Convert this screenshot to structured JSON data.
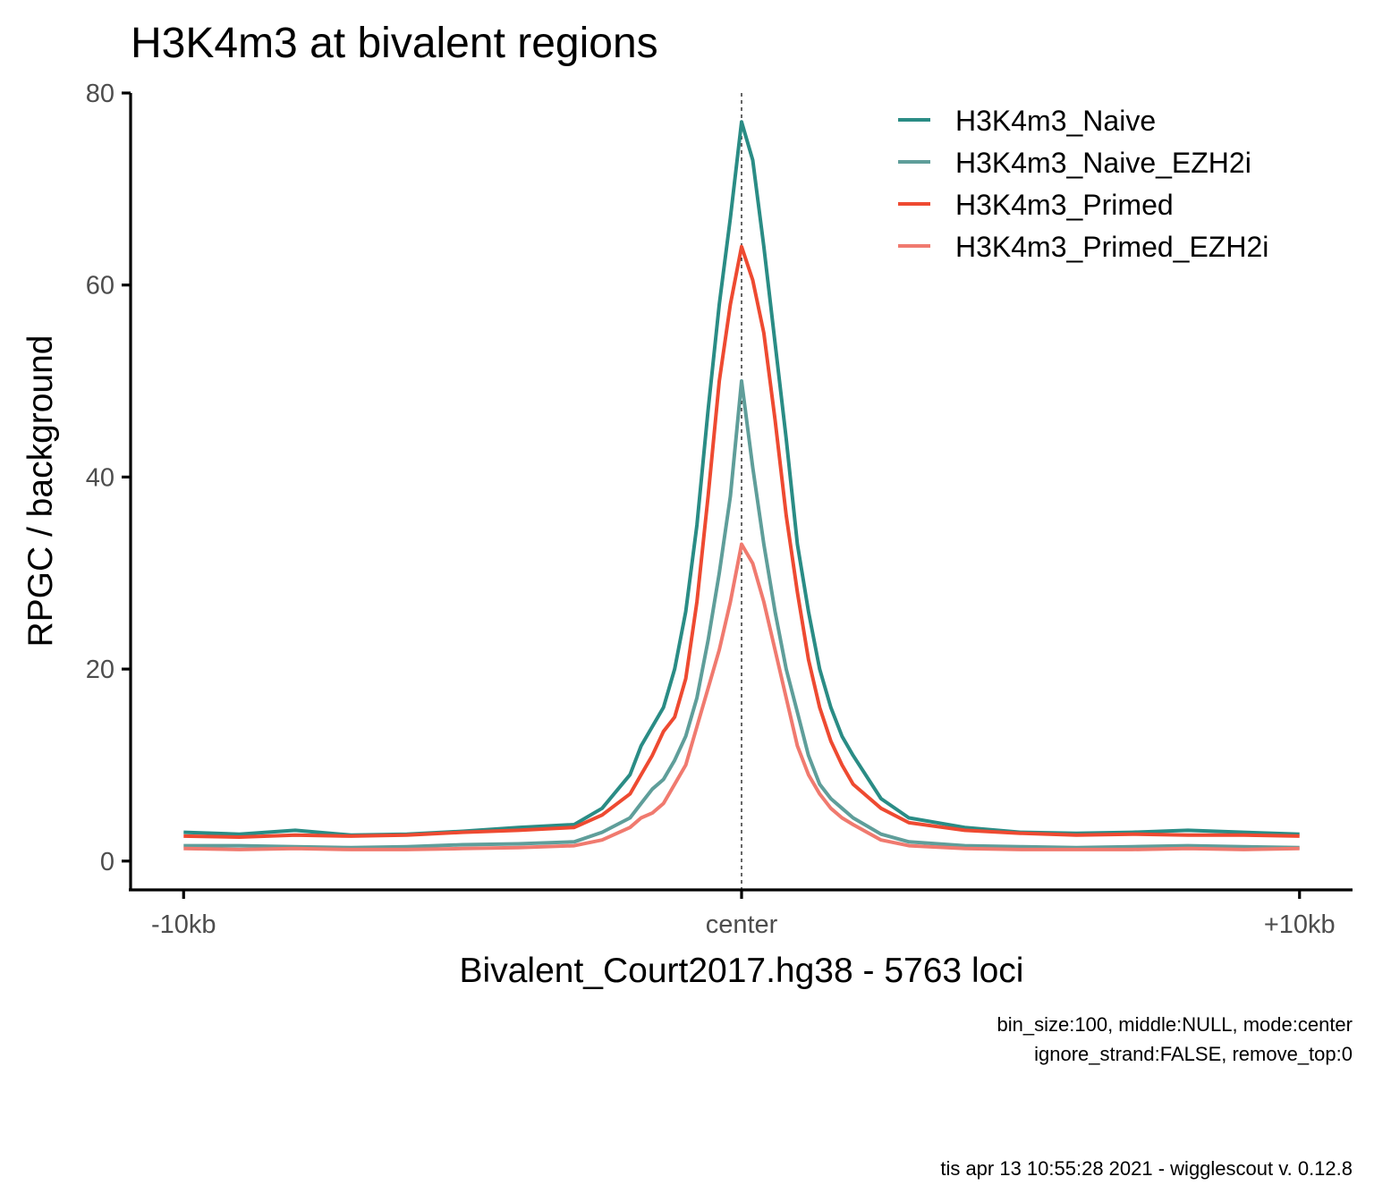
{
  "chart_data": {
    "type": "line",
    "title": "H3K4m3 at bivalent regions",
    "xlabel": "Bivalent_Court2017.hg38 - 5763 loci",
    "ylabel": "RPGC / background",
    "x_tick_labels": [
      "-10kb",
      "center",
      "+10kb"
    ],
    "x_ticks": [
      -10000,
      0,
      10000
    ],
    "y_ticks": [
      0,
      20,
      40,
      60,
      80
    ],
    "ylim": [
      -3,
      80
    ],
    "xlim": [
      -10950,
      10950
    ],
    "center_line": true,
    "grid": false,
    "legend_position": "top-right",
    "x": [
      -10000,
      -9000,
      -8000,
      -7000,
      -6000,
      -5000,
      -4000,
      -3000,
      -2500,
      -2000,
      -1800,
      -1600,
      -1400,
      -1200,
      -1000,
      -800,
      -600,
      -400,
      -200,
      0,
      200,
      400,
      600,
      800,
      1000,
      1200,
      1400,
      1600,
      1800,
      2000,
      2500,
      3000,
      4000,
      5000,
      6000,
      7000,
      8000,
      9000,
      10000
    ],
    "series": [
      {
        "name": "H3K4m3_Naive",
        "color": "#2a8c85",
        "values": [
          3.0,
          2.8,
          3.2,
          2.7,
          2.8,
          3.1,
          3.5,
          3.8,
          5.5,
          9.0,
          12.0,
          14.0,
          16.0,
          20.0,
          26.0,
          35.0,
          47.0,
          58.0,
          67.0,
          77.0,
          73.0,
          64.0,
          54.0,
          44.0,
          33.0,
          26.0,
          20.0,
          16.0,
          13.0,
          11.0,
          6.5,
          4.5,
          3.5,
          3.0,
          2.9,
          3.0,
          3.2,
          3.0,
          2.8
        ]
      },
      {
        "name": "H3K4m3_Naive_EZH2i",
        "color": "#5f9e9a",
        "values": [
          1.6,
          1.6,
          1.5,
          1.4,
          1.5,
          1.7,
          1.8,
          2.0,
          3.0,
          4.5,
          6.0,
          7.5,
          8.5,
          10.5,
          13.0,
          17.0,
          23.0,
          30.0,
          38.0,
          50.0,
          41.0,
          33.0,
          26.0,
          20.0,
          15.5,
          11.0,
          8.0,
          6.5,
          5.5,
          4.5,
          2.8,
          2.0,
          1.6,
          1.5,
          1.4,
          1.5,
          1.6,
          1.5,
          1.4
        ]
      },
      {
        "name": "H3K4m3_Primed",
        "color": "#ee4a31",
        "values": [
          2.6,
          2.5,
          2.7,
          2.6,
          2.7,
          3.0,
          3.2,
          3.5,
          4.8,
          7.0,
          9.0,
          11.0,
          13.5,
          15.0,
          19.0,
          27.0,
          38.0,
          50.0,
          58.0,
          64.0,
          60.5,
          55.0,
          46.0,
          36.0,
          28.0,
          21.0,
          16.0,
          12.5,
          10.0,
          8.0,
          5.5,
          4.0,
          3.2,
          2.9,
          2.7,
          2.8,
          2.7,
          2.7,
          2.6
        ]
      },
      {
        "name": "H3K4m3_Primed_EZH2i",
        "color": "#f07a6f",
        "values": [
          1.3,
          1.2,
          1.3,
          1.2,
          1.2,
          1.3,
          1.4,
          1.6,
          2.2,
          3.5,
          4.5,
          5.0,
          6.0,
          8.0,
          10.0,
          14.0,
          18.0,
          22.0,
          27.0,
          33.0,
          31.0,
          27.0,
          22.0,
          17.0,
          12.0,
          9.0,
          7.0,
          5.5,
          4.5,
          3.8,
          2.2,
          1.6,
          1.3,
          1.2,
          1.2,
          1.2,
          1.3,
          1.2,
          1.3
        ]
      }
    ],
    "caption_lines": [
      "bin_size:100, middle:NULL, mode:center",
      "ignore_strand:FALSE, remove_top:0"
    ],
    "footer": "tis apr 13 10:55:28 2021 - wigglescout v. 0.12.8"
  }
}
